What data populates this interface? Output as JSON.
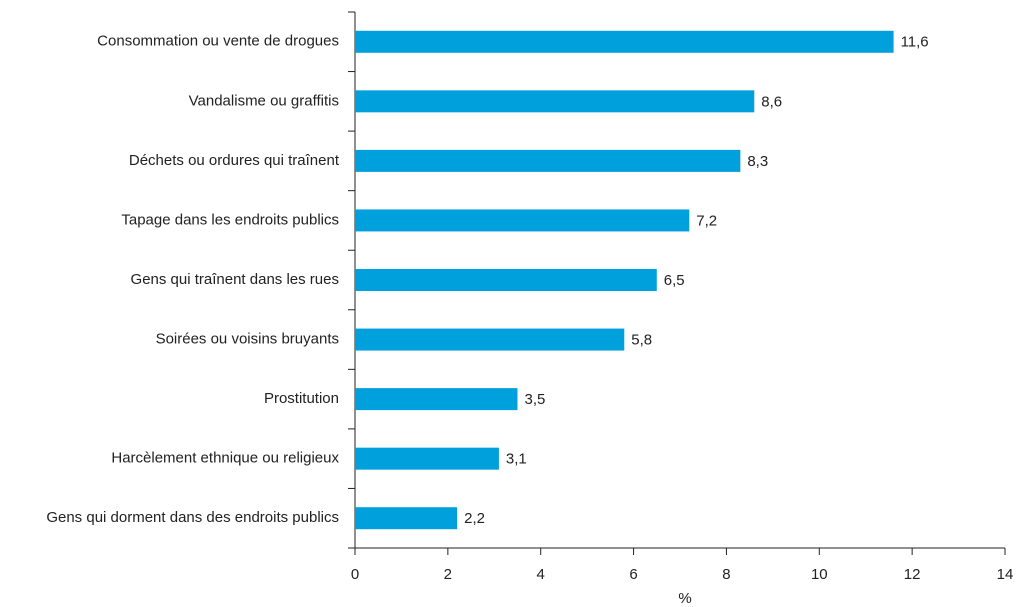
{
  "chart_data": {
    "type": "bar",
    "orientation": "horizontal",
    "categories": [
      "Consommation ou vente de drogues",
      "Vandalisme ou graffitis",
      "Déchets ou ordures qui traînent",
      "Tapage dans les endroits publics",
      "Gens qui traînent dans les rues",
      "Soirées ou voisins bruyants",
      "Prostitution",
      "Harcèlement ethnique ou religieux",
      "Gens qui dorment dans des endroits publics"
    ],
    "values": [
      11.6,
      8.6,
      8.3,
      7.2,
      6.5,
      5.8,
      3.5,
      3.1,
      2.2
    ],
    "value_labels": [
      "11,6",
      "8,6",
      "8,3",
      "7,2",
      "6,5",
      "5,8",
      "3,5",
      "3,1",
      "2,2"
    ],
    "color": "#00a0dd",
    "xlim": [
      0,
      14
    ],
    "xticks": [
      0,
      2,
      4,
      6,
      8,
      10,
      12,
      14
    ],
    "x_label": "%"
  }
}
